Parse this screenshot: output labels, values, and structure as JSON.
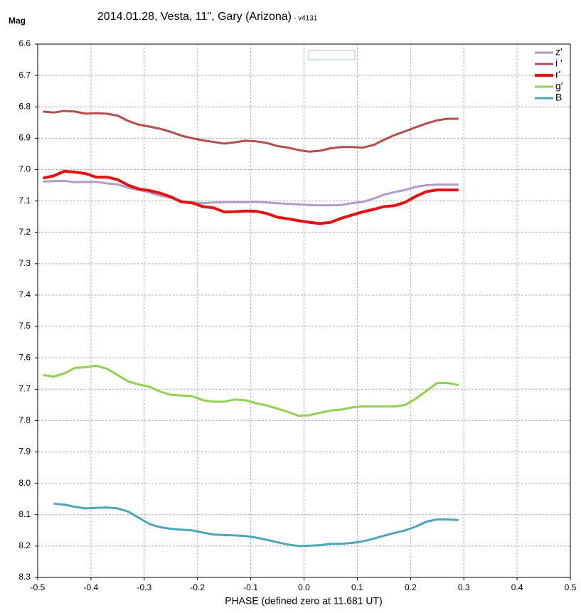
{
  "chart_data": {
    "type": "line",
    "title": "2014.01.28, Vesta, 11\", Gary (Arizona)",
    "subtitle": "- v4131",
    "ylabel": "Mag",
    "xlabel": "PHASE (defined zero at 11.681 UT)",
    "xlim": [
      -0.5,
      0.5
    ],
    "xticks": [
      -0.5,
      -0.4,
      -0.3,
      -0.2,
      -0.1,
      {
        "value": 0,
        "label": "0.0"
      },
      0.1,
      0.2,
      0.3,
      0.4,
      0.5
    ],
    "ylim": [
      6.6,
      8.3
    ],
    "y_inverted": true,
    "yticks": [
      6.6,
      6.7,
      6.8,
      6.9,
      {
        "value": 7,
        "label": "7.0"
      },
      7.1,
      7.2,
      7.3,
      7.4,
      7.5,
      7.6,
      7.7,
      7.8,
      7.9,
      {
        "value": 8,
        "label": "8.0"
      },
      8.1,
      8.2,
      8.3
    ],
    "grid": true,
    "legend": "top-right",
    "x": [
      -0.49,
      -0.47,
      -0.45,
      -0.43,
      -0.41,
      -0.39,
      -0.37,
      -0.35,
      -0.33,
      -0.31,
      -0.29,
      -0.27,
      -0.25,
      -0.23,
      -0.21,
      -0.19,
      -0.17,
      -0.15,
      -0.13,
      -0.11,
      -0.09,
      -0.07,
      -0.05,
      -0.03,
      -0.01,
      0.01,
      0.03,
      0.05,
      0.07,
      0.09,
      0.11,
      0.13,
      0.15,
      0.17,
      0.19,
      0.21,
      0.23,
      0.25,
      0.27,
      0.29
    ],
    "series": [
      {
        "name": "z'",
        "color": "#b09cc6",
        "width": 3,
        "values": [
          7.038,
          7.037,
          7.036,
          7.04,
          7.039,
          7.039,
          7.044,
          7.047,
          7.058,
          7.065,
          7.073,
          7.083,
          7.09,
          7.1,
          7.105,
          7.107,
          7.105,
          7.104,
          7.104,
          7.104,
          7.103,
          7.105,
          7.107,
          7.109,
          7.111,
          7.113,
          7.114,
          7.114,
          7.113,
          7.107,
          7.103,
          7.093,
          7.08,
          7.072,
          7.065,
          7.055,
          7.05,
          7.048,
          7.048,
          7.048
        ]
      },
      {
        "name": "i '",
        "color": "#b84c4c",
        "width": 3,
        "values": [
          6.815,
          6.818,
          6.813,
          6.815,
          6.822,
          6.82,
          6.822,
          6.828,
          6.845,
          6.857,
          6.863,
          6.87,
          6.88,
          6.892,
          6.9,
          6.907,
          6.912,
          6.917,
          6.913,
          6.908,
          6.91,
          6.915,
          6.925,
          6.93,
          6.938,
          6.943,
          6.94,
          6.932,
          6.928,
          6.928,
          6.93,
          6.922,
          6.905,
          6.89,
          6.878,
          6.865,
          6.853,
          6.843,
          6.838,
          6.838
        ]
      },
      {
        "name": "r'",
        "color": "#e81010",
        "width": 4,
        "values": [
          7.027,
          7.02,
          7.005,
          7.008,
          7.013,
          7.024,
          7.024,
          7.032,
          7.05,
          7.062,
          7.067,
          7.075,
          7.087,
          7.103,
          7.106,
          7.118,
          7.122,
          7.135,
          7.134,
          7.132,
          7.133,
          7.14,
          7.152,
          7.157,
          7.163,
          7.168,
          7.172,
          7.168,
          7.155,
          7.145,
          7.135,
          7.127,
          7.118,
          7.115,
          7.104,
          7.085,
          7.07,
          7.065,
          7.065,
          7.065
        ]
      },
      {
        "name": "g'",
        "color": "#92d050",
        "width": 3,
        "values": [
          7.655,
          7.66,
          7.65,
          7.632,
          7.63,
          7.625,
          7.635,
          7.655,
          7.675,
          7.685,
          7.692,
          7.708,
          7.718,
          7.72,
          7.722,
          7.735,
          7.74,
          7.74,
          7.733,
          7.735,
          7.745,
          7.752,
          7.762,
          7.772,
          7.785,
          7.783,
          7.775,
          7.768,
          7.765,
          7.758,
          7.755,
          7.755,
          7.755,
          7.755,
          7.75,
          7.73,
          7.705,
          7.68,
          7.68,
          7.687
        ]
      },
      {
        "name": "B",
        "color": "#4aa7b7",
        "width": 3,
        "values": [
          null,
          8.065,
          8.068,
          8.075,
          8.08,
          8.078,
          8.077,
          8.08,
          8.09,
          8.11,
          8.13,
          8.14,
          8.145,
          8.148,
          8.15,
          8.157,
          8.163,
          8.165,
          8.166,
          8.168,
          8.173,
          8.18,
          8.188,
          8.195,
          8.2,
          8.199,
          8.197,
          8.193,
          8.193,
          8.19,
          8.185,
          8.177,
          8.167,
          8.158,
          8.15,
          8.138,
          8.122,
          8.115,
          8.115,
          8.117
        ]
      }
    ]
  }
}
